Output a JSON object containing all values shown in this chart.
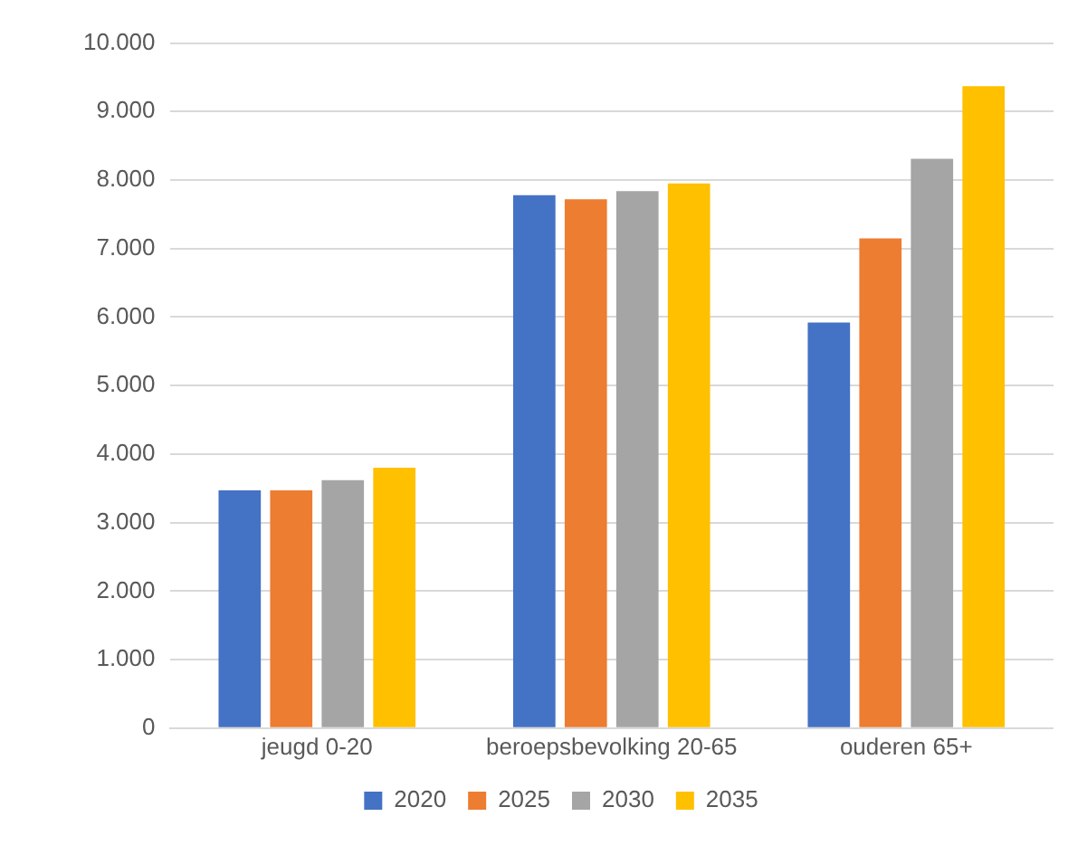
{
  "chart_data": {
    "type": "bar",
    "categories": [
      "jeugd 0-20",
      "beroepsbevolking 20-65",
      "ouderen 65+"
    ],
    "series": [
      {
        "name": "2020",
        "color": "#4472c4",
        "values": [
          3470,
          7780,
          5920
        ]
      },
      {
        "name": "2025",
        "color": "#ed7d31",
        "values": [
          3470,
          7720,
          7150
        ]
      },
      {
        "name": "2030",
        "color": "#a5a5a5",
        "values": [
          3620,
          7840,
          8310
        ]
      },
      {
        "name": "2035",
        "color": "#ffc000",
        "values": [
          3800,
          7950,
          9370
        ]
      }
    ],
    "ylim": [
      0,
      10000
    ],
    "yticks": [
      0,
      {
        "value": 1000,
        "label": "1.000"
      },
      {
        "value": 2000,
        "label": "2.000"
      },
      {
        "value": 3000,
        "label": "3.000"
      },
      {
        "value": 4000,
        "label": "4.000"
      },
      {
        "value": 5000,
        "label": "5.000"
      },
      {
        "value": 6000,
        "label": "6.000"
      },
      {
        "value": 7000,
        "label": "7.000"
      },
      {
        "value": 8000,
        "label": "8.000"
      },
      {
        "value": 9000,
        "label": "9.000"
      },
      {
        "value": 10000,
        "label": "10.000"
      }
    ],
    "grid": "y",
    "legend": "bottom"
  }
}
